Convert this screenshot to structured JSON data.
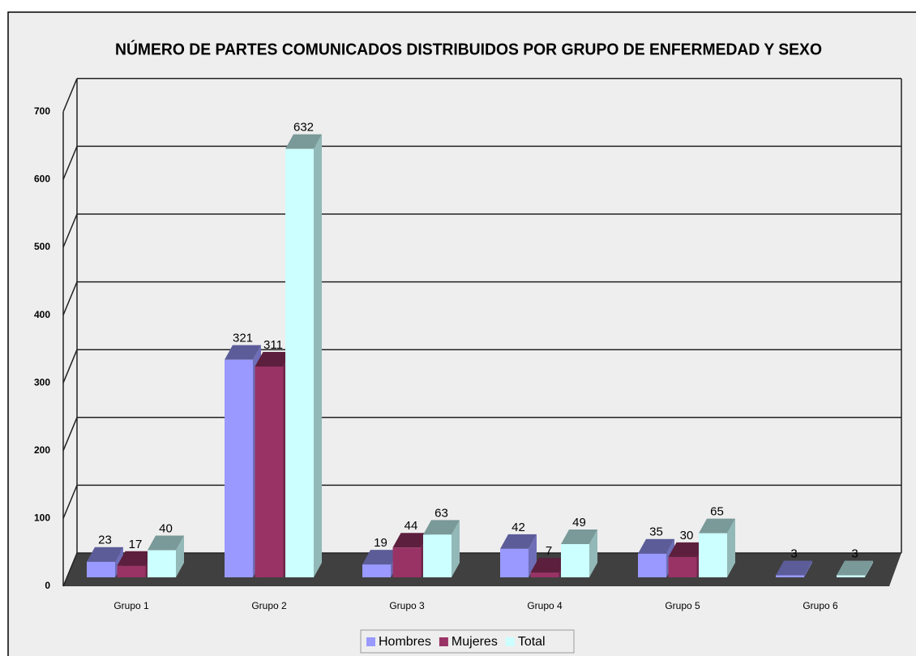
{
  "chart_data": {
    "type": "bar3d",
    "title": "NÚMERO DE PARTES COMUNICADOS  DISTRIBUIDOS POR GRUPO DE ENFERMEDAD Y SEXO",
    "categories": [
      "Grupo 1",
      "Grupo 2",
      "Grupo 3",
      "Grupo 4",
      "Grupo 5",
      "Grupo 6"
    ],
    "series": [
      {
        "name": "Hombres",
        "color": "#9999ff",
        "values": [
          23,
          321,
          19,
          42,
          35,
          3
        ]
      },
      {
        "name": "Mujeres",
        "color": "#993366",
        "values": [
          17,
          311,
          44,
          7,
          30,
          null
        ]
      },
      {
        "name": "Total",
        "color": "#ccffff",
        "values": [
          40,
          632,
          63,
          49,
          65,
          3
        ]
      }
    ],
    "ylim": [
      0,
      700
    ],
    "yticks": [
      0,
      100,
      200,
      300,
      400,
      500,
      600,
      700
    ],
    "grid": true,
    "legend": "bottom"
  }
}
